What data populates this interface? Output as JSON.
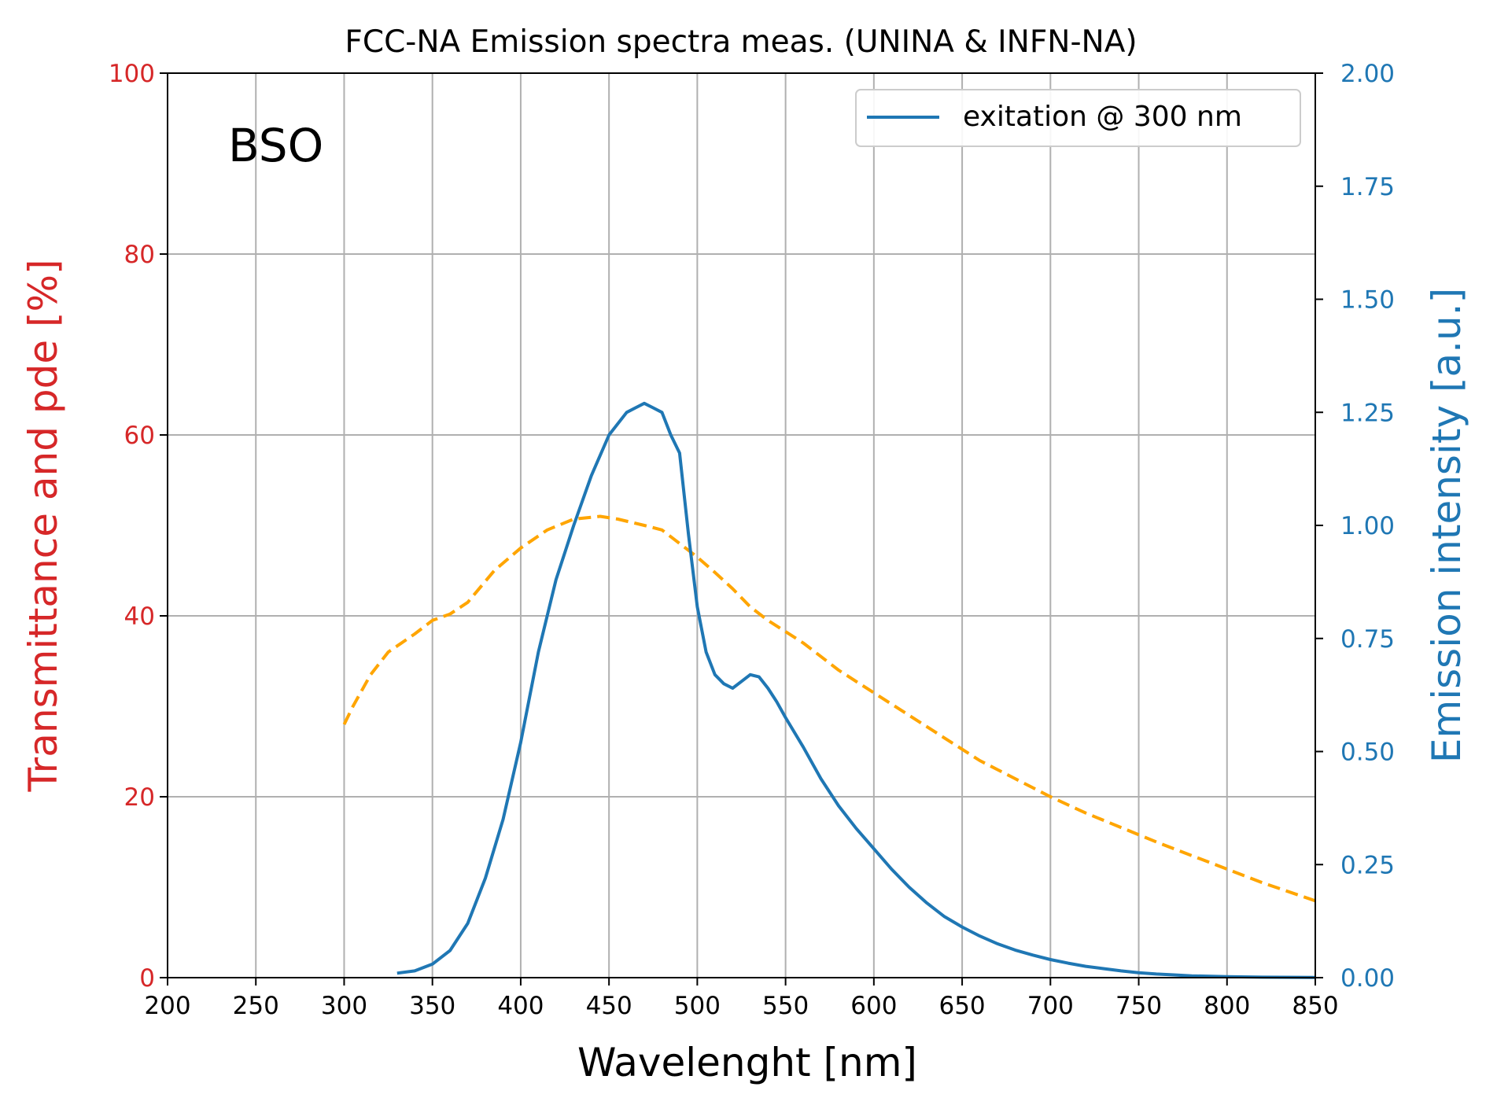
{
  "chart_data": {
    "type": "line",
    "title": "FCC-NA Emission spectra meas. (UNINA & INFN-NA)",
    "xlabel": "Wavelenght [nm]",
    "ylabel_left": "Transmittance and pde [%]",
    "ylabel_right": "Emission intensity [a.u.]",
    "annotation": "BSO",
    "xlim": [
      200,
      850
    ],
    "ylim_left": [
      0,
      100
    ],
    "ylim_right": [
      0,
      2.0
    ],
    "x_ticks": [
      200,
      250,
      300,
      350,
      400,
      450,
      500,
      550,
      600,
      650,
      700,
      750,
      800,
      850
    ],
    "y_left_ticks": [
      0,
      20,
      40,
      60,
      80,
      100
    ],
    "y_right_ticks": [
      "0.00",
      "0.25",
      "0.50",
      "0.75",
      "1.00",
      "1.25",
      "1.50",
      "1.75",
      "2.00"
    ],
    "grid": true,
    "legend_position": "top-right",
    "colors": {
      "left_axis": "#d62728",
      "right_axis": "#1f77b4",
      "transmittance": "#ffa500",
      "emission": "#1f77b4",
      "grid": "#b0b0b0"
    },
    "series": [
      {
        "name": "",
        "axis": "left",
        "style": "dashed",
        "x": [
          300,
          305,
          315,
          325,
          340,
          350,
          360,
          370,
          385,
          400,
          415,
          430,
          445,
          455,
          470,
          480,
          490,
          500,
          510,
          520,
          530,
          540,
          560,
          580,
          600,
          620,
          640,
          660,
          680,
          700,
          720,
          740,
          760,
          780,
          800,
          820,
          850
        ],
        "y": [
          28,
          30,
          33.5,
          36,
          38,
          39.5,
          40.2,
          41.5,
          45,
          47.5,
          49.5,
          50.7,
          51,
          50.7,
          50,
          49.5,
          48,
          46.5,
          44.8,
          43,
          41,
          39.5,
          37,
          34,
          31.5,
          29,
          26.5,
          24,
          22,
          20,
          18.2,
          16.6,
          15,
          13.5,
          12,
          10.5,
          8.5
        ]
      },
      {
        "name": "exitation @ 300 nm",
        "axis": "right",
        "style": "solid",
        "x": [
          330,
          340,
          350,
          360,
          370,
          380,
          390,
          400,
          410,
          420,
          430,
          440,
          450,
          460,
          465,
          470,
          475,
          480,
          485,
          490,
          495,
          500,
          505,
          510,
          515,
          520,
          525,
          530,
          535,
          540,
          545,
          550,
          560,
          570,
          580,
          590,
          600,
          610,
          620,
          630,
          640,
          650,
          660,
          670,
          680,
          690,
          700,
          710,
          720,
          730,
          740,
          750,
          760,
          770,
          780,
          800,
          820,
          850
        ],
        "y": [
          0.01,
          0.015,
          0.03,
          0.06,
          0.12,
          0.22,
          0.35,
          0.52,
          0.72,
          0.88,
          1.0,
          1.11,
          1.2,
          1.25,
          1.26,
          1.27,
          1.26,
          1.25,
          1.2,
          1.16,
          0.98,
          0.82,
          0.72,
          0.67,
          0.65,
          0.64,
          0.655,
          0.67,
          0.665,
          0.64,
          0.61,
          0.575,
          0.51,
          0.44,
          0.38,
          0.33,
          0.285,
          0.24,
          0.2,
          0.165,
          0.135,
          0.112,
          0.092,
          0.075,
          0.061,
          0.05,
          0.04,
          0.032,
          0.025,
          0.02,
          0.015,
          0.011,
          0.008,
          0.006,
          0.004,
          0.002,
          0.001,
          0.0005
        ]
      }
    ]
  }
}
